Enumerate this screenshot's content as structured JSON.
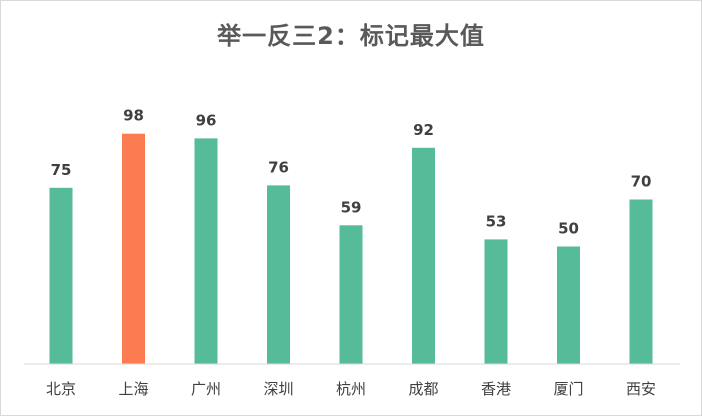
{
  "chart_data": {
    "type": "bar",
    "title": "举一反三2：标记最大值",
    "categories": [
      "北京",
      "上海",
      "广州",
      "深圳",
      "杭州",
      "成都",
      "香港",
      "厦门",
      "西安"
    ],
    "values": [
      75,
      98,
      96,
      76,
      59,
      92,
      53,
      50,
      70
    ],
    "colors": {
      "bar": "#55bb99",
      "max_bar": "#fb7c51",
      "axis": "#d9d9d9",
      "label": "#404040",
      "title": "#595959"
    },
    "ylim": [
      0,
      100
    ],
    "grid": false,
    "legend": "none",
    "data_labels": true
  }
}
